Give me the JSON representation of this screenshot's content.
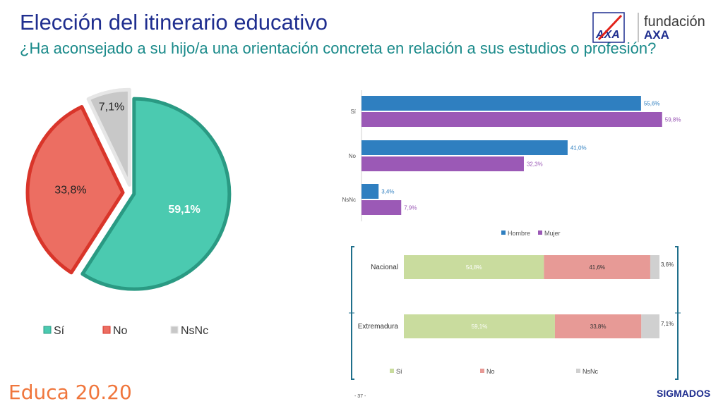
{
  "title": "Elección del itinerario educativo",
  "subtitle": "¿Ha aconsejado a su hijo/a una orientación concreta en relación a sus estudios o profesión?",
  "logo": {
    "brand": "AXA",
    "line1": "fundación",
    "line2": "AXA"
  },
  "footer": {
    "left": "Educa 20.20",
    "page": "- 37 -",
    "right": "SIGMADOS"
  },
  "colors": {
    "si": "#4bcab0",
    "no": "#ec6e62",
    "nsnc": "#c8c8c8",
    "hombre": "#2f7fc0",
    "mujer": "#9b59b6",
    "si_light": "#c9dc9e",
    "no_light": "#e79a96",
    "nsnc_light": "#d0d0d0"
  },
  "chart_data": [
    {
      "type": "pie",
      "categories": [
        "Sí",
        "No",
        "NsNc"
      ],
      "values": [
        59.1,
        33.8,
        7.1
      ],
      "labels": [
        "59,1%",
        "33,8%",
        "7,1%"
      ],
      "legend": [
        "Sí",
        "No",
        "NsNc"
      ]
    },
    {
      "type": "bar",
      "orientation": "horizontal",
      "categories": [
        "Sí",
        "No",
        "NsNc"
      ],
      "series": [
        {
          "name": "Hombre",
          "values": [
            55.6,
            41.0,
            3.4
          ],
          "labels": [
            "55,6%",
            "41,0%",
            "3,4%"
          ]
        },
        {
          "name": "Mujer",
          "values": [
            59.8,
            32.3,
            7.9
          ],
          "labels": [
            "59,8%",
            "32,3%",
            "7,9%"
          ]
        }
      ],
      "legend": [
        "Hombre",
        "Mujer"
      ]
    },
    {
      "type": "bar",
      "orientation": "horizontal",
      "stacked": true,
      "categories": [
        "Nacional",
        "Extremadura"
      ],
      "series": [
        {
          "name": "Sí",
          "values": [
            54.8,
            59.1
          ],
          "labels": [
            "54,8%",
            "59,1%"
          ]
        },
        {
          "name": "No",
          "values": [
            41.6,
            33.8
          ],
          "labels": [
            "41,6%",
            "33,8%"
          ]
        },
        {
          "name": "NsNc",
          "values": [
            3.6,
            7.1
          ],
          "labels": [
            "3,6%",
            "7,1%"
          ]
        }
      ],
      "legend": [
        "Sí",
        "No",
        "NsNc"
      ]
    }
  ]
}
